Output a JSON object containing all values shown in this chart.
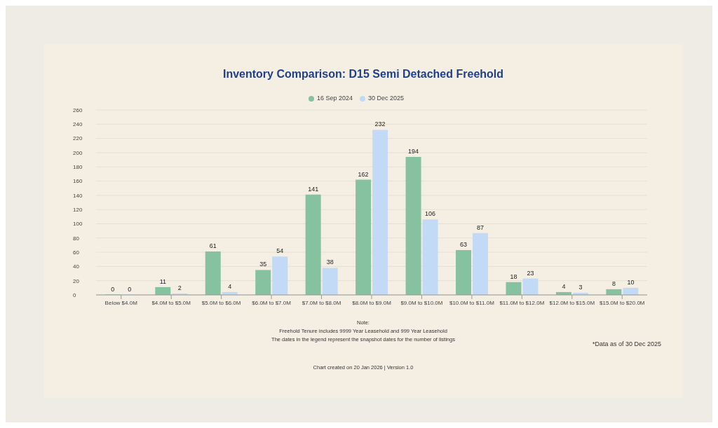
{
  "chart_data": {
    "type": "bar",
    "title": "Inventory Comparison: D15 Semi Detached Freehold",
    "categories": [
      "Below $4.0M",
      "$4.0M to $5.0M",
      "$5.0M to $6.0M",
      "$6.0M to $7.0M",
      "$7.0M to $8.0M",
      "$8.0M to $9.0M",
      "$9.0M to $10.0M",
      "$10.0M to $11.0M",
      "$11.0M to $12.0M",
      "$12.0M to $15.0M",
      "$15.0M to $20.0M"
    ],
    "series": [
      {
        "name": "16 Sep 2024",
        "color": "#86c1a0",
        "values": [
          0,
          11,
          61,
          35,
          141,
          162,
          194,
          63,
          18,
          4,
          8
        ]
      },
      {
        "name": "30 Dec 2025",
        "color": "#c2daf5",
        "values": [
          0,
          2,
          4,
          54,
          38,
          232,
          106,
          87,
          23,
          3,
          10
        ]
      }
    ],
    "ylim": [
      0,
      260
    ],
    "yticks": [
      0,
      20,
      40,
      60,
      80,
      100,
      120,
      140,
      160,
      180,
      200,
      220,
      240,
      260
    ],
    "grid": "y",
    "legend": "top",
    "data_labels": true,
    "annotations": [
      "Note:",
      "Freehold Tenure includes 9999 Year Leasehold and 999 Year Leasehold",
      "The dates in the legend represent the snapshot dates for the number of listings",
      "*Data as of 30 Dec 2025",
      "Chart created on 20 Jan 2026 | Version 1.0"
    ]
  }
}
